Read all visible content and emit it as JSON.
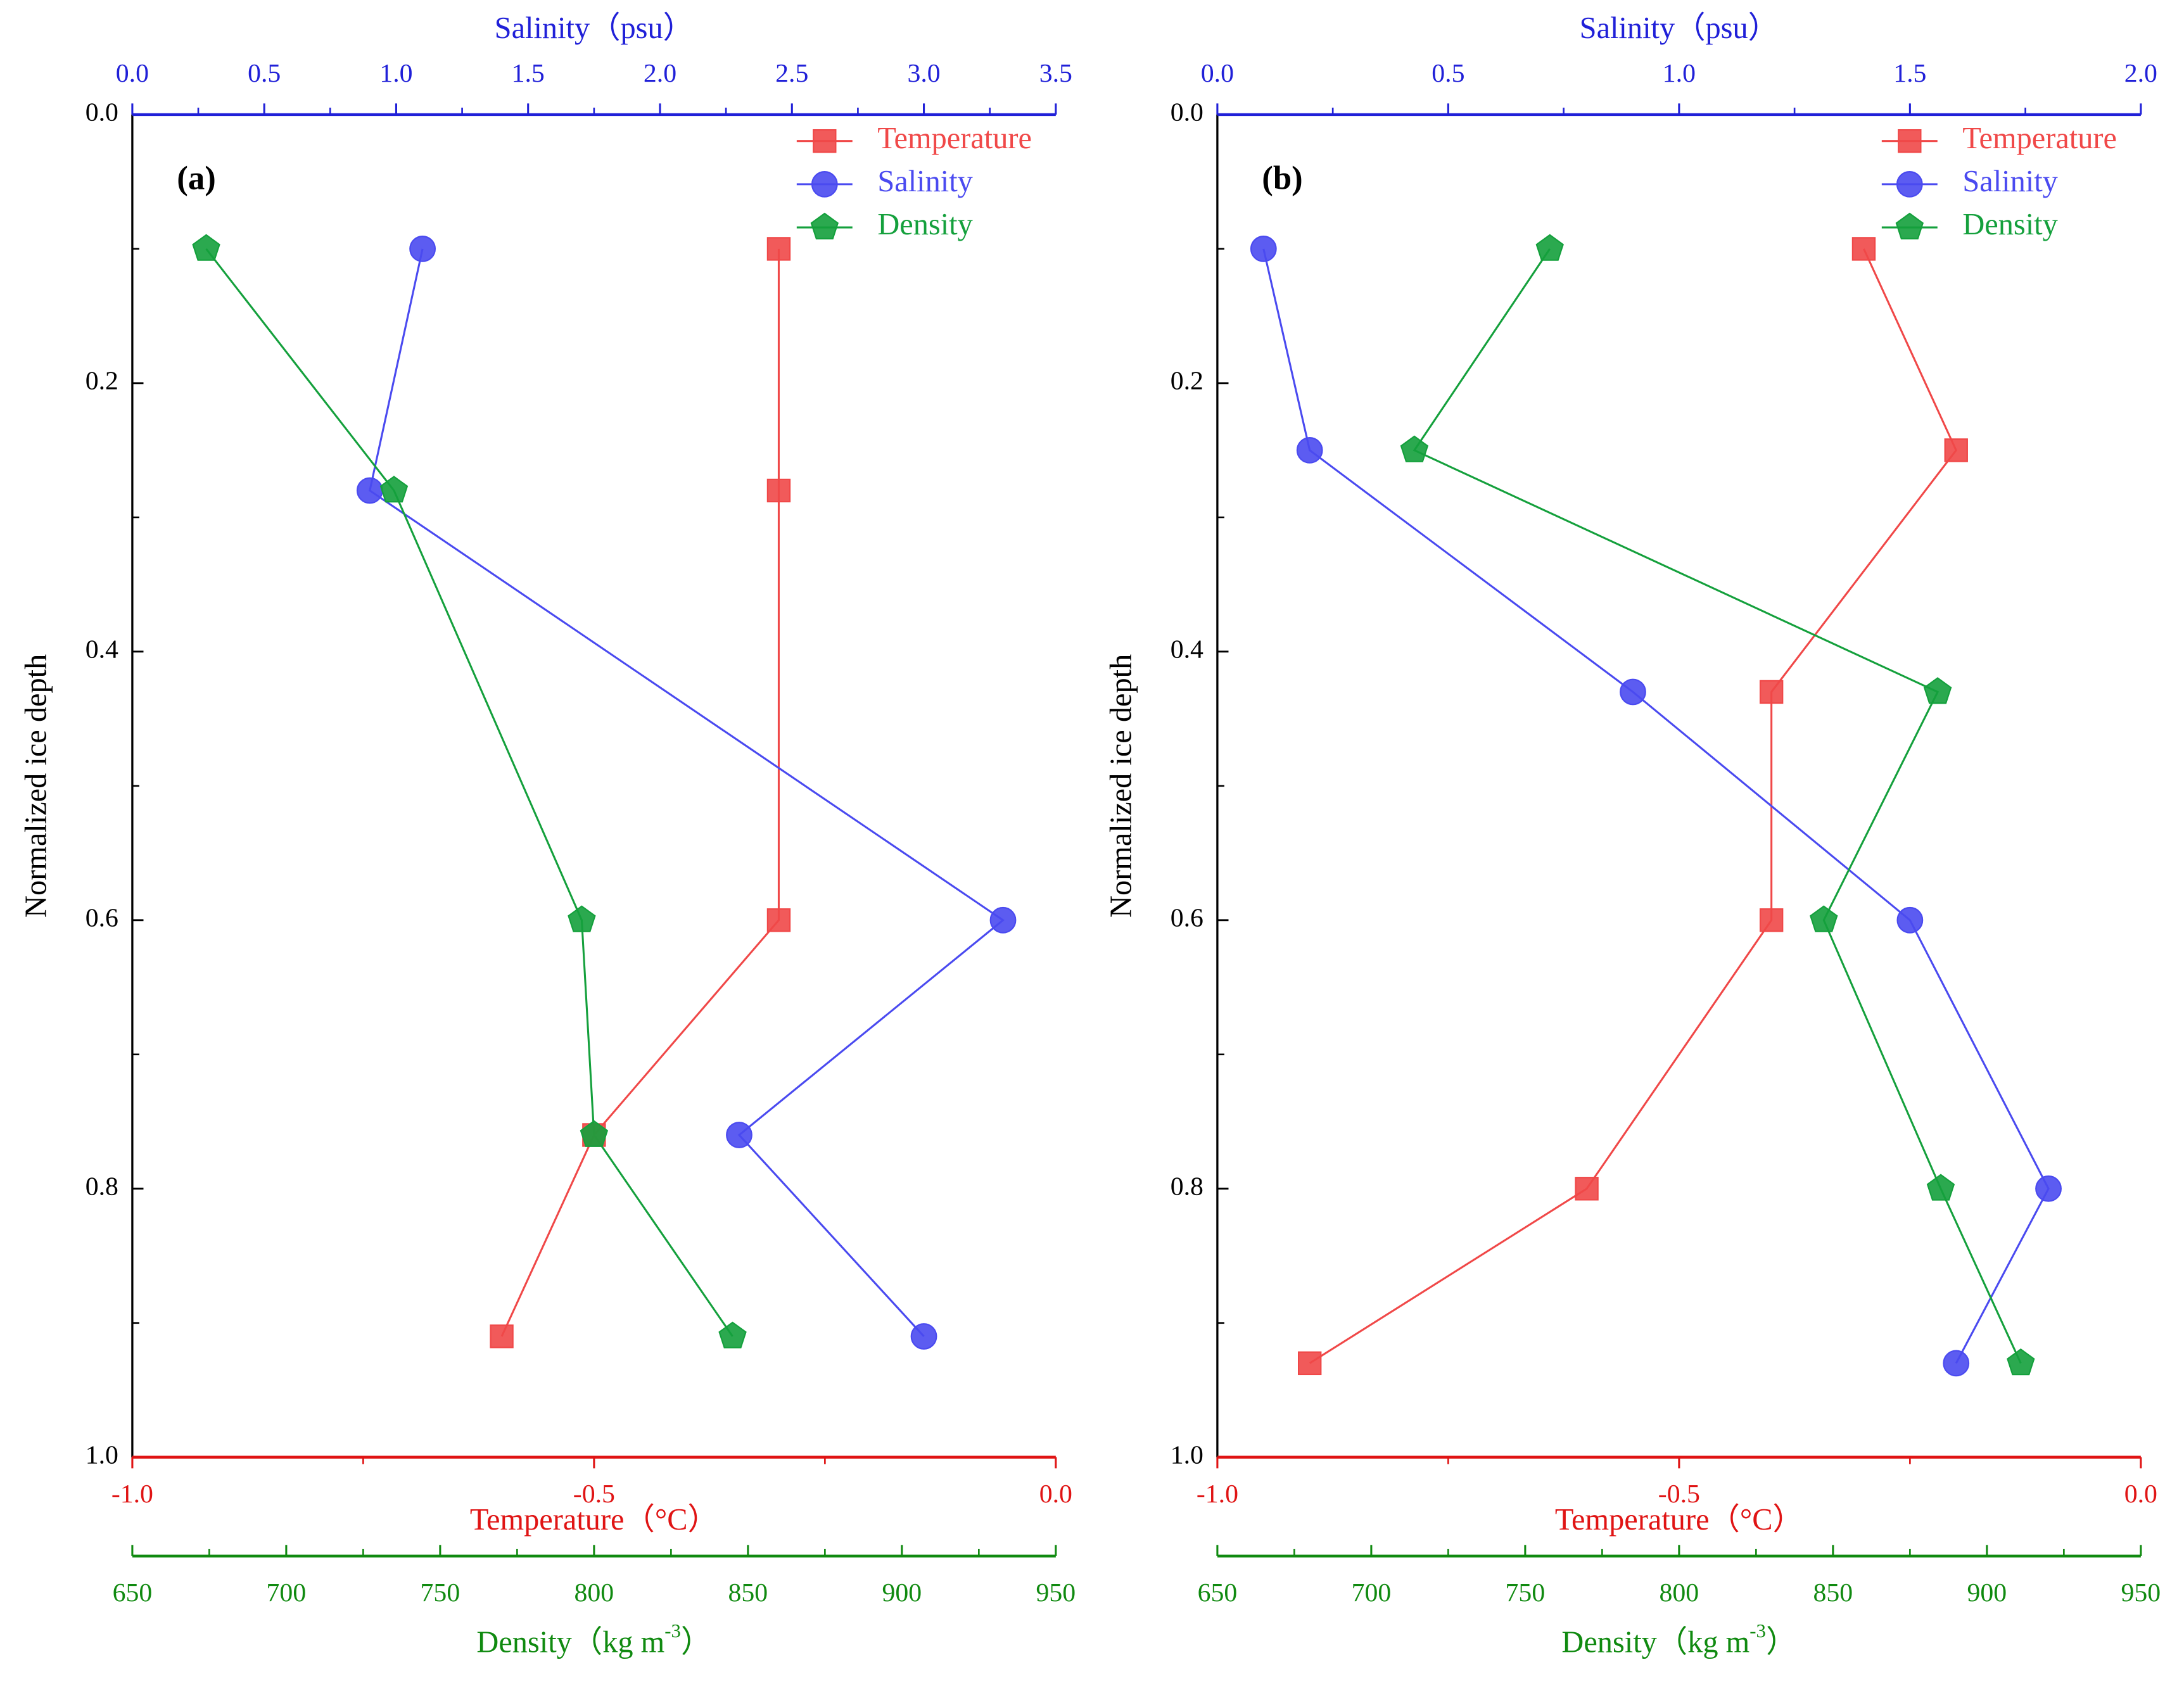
{
  "chart_data": [
    {
      "type": "line",
      "annotation": "(a)",
      "ylabel": "Normalized ice depth",
      "ylim": [
        0,
        1
      ],
      "yticks": [
        {
          "value": 0,
          "label": "0.0"
        },
        0.2,
        0.4,
        0.6,
        0.8,
        {
          "value": 1,
          "label": "1.0"
        }
      ],
      "legend": "upper right",
      "axes": {
        "salinity": {
          "label": "Salinity（psu）",
          "color": "#2020d8",
          "lim": [
            0,
            3.5
          ],
          "ticks": [
            {
              "value": 0,
              "label": "0.0"
            },
            0.5,
            {
              "value": 1,
              "label": "1.0"
            },
            1.5,
            {
              "value": 2,
              "label": "2.0"
            },
            2.5,
            {
              "value": 3,
              "label": "3.0"
            },
            3.5
          ]
        },
        "temperature": {
          "label": "Temperature（°C）",
          "color": "#e01414",
          "lim": [
            -1,
            0
          ],
          "ticks": [
            {
              "value": -1,
              "label": "-1.0"
            },
            -0.5,
            {
              "value": 0,
              "label": "0.0"
            }
          ]
        },
        "density": {
          "label": "Density（kg m",
          "label_sup": "-3",
          "label_end": "）",
          "color": "#108a10",
          "lim": [
            650,
            950
          ],
          "ticks": [
            650,
            700,
            750,
            800,
            850,
            900,
            950
          ]
        }
      },
      "series": [
        {
          "name": "Temperature",
          "color": "#f04848",
          "axis": "temperature",
          "marker": "square",
          "values": [
            -0.3,
            -0.3,
            -0.3,
            -0.5,
            -0.6
          ],
          "y": [
            0.1,
            0.28,
            0.6,
            0.76,
            0.91
          ]
        },
        {
          "name": "Salinity",
          "color": "#4a4af0",
          "axis": "salinity",
          "marker": "circle",
          "values": [
            1.1,
            0.9,
            3.3,
            2.3,
            3.0
          ],
          "y": [
            0.1,
            0.28,
            0.6,
            0.76,
            0.91
          ]
        },
        {
          "name": "Density",
          "color": "#14a03c",
          "axis": "density",
          "marker": "pentagon",
          "values": [
            674,
            735,
            796,
            800,
            845
          ],
          "y": [
            0.1,
            0.28,
            0.6,
            0.76,
            0.91
          ]
        }
      ]
    },
    {
      "type": "line",
      "annotation": "(b)",
      "ylabel": "Normalized ice depth",
      "ylim": [
        0,
        1
      ],
      "yticks": [
        {
          "value": 0,
          "label": "0.0"
        },
        0.2,
        0.4,
        0.6,
        0.8,
        {
          "value": 1,
          "label": "1.0"
        }
      ],
      "legend": "upper right",
      "axes": {
        "salinity": {
          "label": "Salinity（psu）",
          "color": "#2020d8",
          "lim": [
            0,
            2
          ],
          "ticks": [
            {
              "value": 0,
              "label": "0.0"
            },
            0.5,
            {
              "value": 1,
              "label": "1.0"
            },
            1.5,
            {
              "value": 2,
              "label": "2.0"
            }
          ]
        },
        "temperature": {
          "label": "Temperature（°C）",
          "color": "#e01414",
          "lim": [
            -1,
            0
          ],
          "ticks": [
            {
              "value": -1,
              "label": "-1.0"
            },
            -0.5,
            {
              "value": 0,
              "label": "0.0"
            }
          ]
        },
        "density": {
          "label": "Density（kg m",
          "label_sup": "-3",
          "label_end": "）",
          "color": "#108a10",
          "lim": [
            650,
            950
          ],
          "ticks": [
            650,
            700,
            750,
            800,
            850,
            900,
            950
          ]
        }
      },
      "series": [
        {
          "name": "Temperature",
          "color": "#f04848",
          "axis": "temperature",
          "marker": "square",
          "values": [
            -0.3,
            -0.2,
            -0.4,
            -0.4,
            -0.6,
            -0.9
          ],
          "y": [
            0.1,
            0.25,
            0.43,
            0.6,
            0.8,
            0.93
          ]
        },
        {
          "name": "Salinity",
          "color": "#4a4af0",
          "axis": "salinity",
          "marker": "circle",
          "values": [
            0.1,
            0.2,
            0.9,
            1.5,
            1.8,
            1.6
          ],
          "y": [
            0.1,
            0.25,
            0.43,
            0.6,
            0.8,
            0.93
          ]
        },
        {
          "name": "Density",
          "color": "#14a03c",
          "axis": "density",
          "marker": "pentagon",
          "values": [
            758,
            714,
            884,
            847,
            885,
            911
          ],
          "y": [
            0.1,
            0.25,
            0.43,
            0.6,
            0.8,
            0.93
          ]
        }
      ]
    }
  ]
}
